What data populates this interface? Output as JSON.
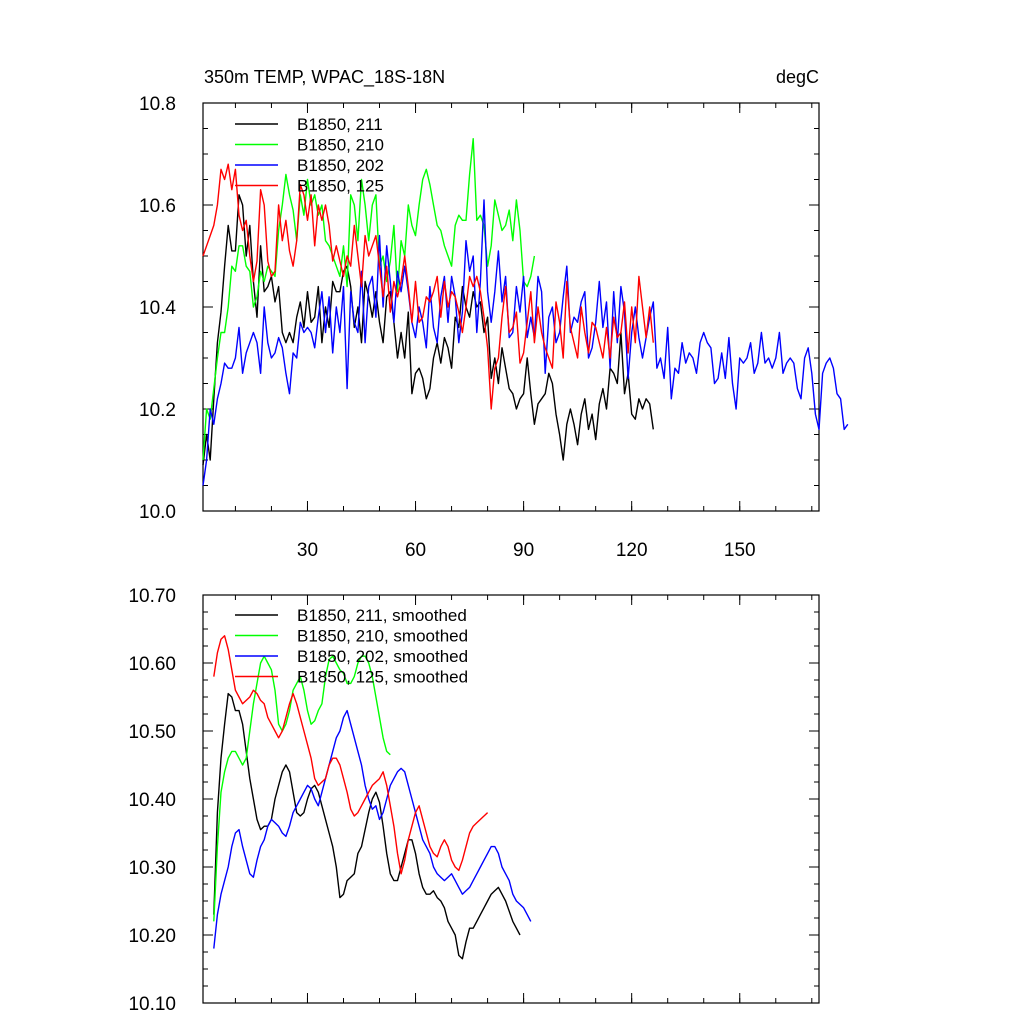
{
  "chart_data": [
    {
      "type": "line",
      "title": "350m TEMP, WPAC_18S-18N",
      "units": "degC",
      "xlim": [
        1,
        172
      ],
      "ylim": [
        10.0,
        10.8
      ],
      "xticks": [
        30,
        60,
        90,
        120,
        150
      ],
      "xtick_labels": [
        "30",
        "60",
        "90",
        "120",
        "150"
      ],
      "yticks": [
        10.0,
        10.2,
        10.4,
        10.6,
        10.8
      ],
      "ytick_labels": [
        "10.0",
        "10.2",
        "10.4",
        "10.6",
        "10.8"
      ],
      "legend_position": "top-left",
      "series": [
        {
          "name": "B1850, 211",
          "color": "#000000",
          "x_start": 1,
          "values": [
            10.09,
            10.15,
            10.1,
            10.22,
            10.33,
            10.39,
            10.48,
            10.56,
            10.51,
            10.51,
            10.62,
            10.6,
            10.5,
            10.56,
            10.45,
            10.38,
            10.52,
            10.43,
            10.44,
            10.46,
            10.41,
            10.44,
            10.35,
            10.33,
            10.35,
            10.33,
            10.38,
            10.41,
            10.36,
            10.43,
            10.37,
            10.38,
            10.44,
            10.33,
            10.4,
            10.36,
            10.45,
            10.43,
            10.43,
            10.47,
            10.48,
            10.44,
            10.36,
            10.4,
            10.33,
            10.45,
            10.42,
            10.38,
            10.43,
            10.37,
            10.33,
            10.42,
            10.43,
            10.37,
            10.3,
            10.35,
            10.3,
            10.39,
            10.23,
            10.27,
            10.28,
            10.26,
            10.22,
            10.24,
            10.3,
            10.33,
            10.29,
            10.34,
            10.32,
            10.28,
            10.38,
            10.36,
            10.44,
            10.4,
            10.38,
            10.43,
            10.4,
            10.41,
            10.35,
            10.38,
            10.26,
            10.3,
            10.25,
            10.32,
            10.28,
            10.24,
            10.23,
            10.2,
            10.22,
            10.23,
            10.3,
            10.23,
            10.17,
            10.21,
            10.22,
            10.23,
            10.27,
            10.25,
            10.19,
            10.15,
            10.1,
            10.17,
            10.2,
            10.17,
            10.13,
            10.19,
            10.22,
            10.16,
            10.19,
            10.14,
            10.21,
            10.24,
            10.2,
            10.28,
            10.27,
            10.25,
            10.35,
            10.23,
            10.27,
            10.19,
            10.18,
            10.22,
            10.2,
            10.22,
            10.21,
            10.16
          ]
        },
        {
          "name": "B1850, 210",
          "color": "#00ff00",
          "x_start": 1,
          "values": [
            10.1,
            10.2,
            10.18,
            10.24,
            10.3,
            10.35,
            10.35,
            10.4,
            10.48,
            10.47,
            10.52,
            10.52,
            10.48,
            10.47,
            10.4,
            10.42,
            10.47,
            10.45,
            10.48,
            10.47,
            10.46,
            10.55,
            10.6,
            10.66,
            10.62,
            10.59,
            10.53,
            10.62,
            10.58,
            10.65,
            10.6,
            10.62,
            10.58,
            10.6,
            10.53,
            10.52,
            10.5,
            10.48,
            10.46,
            10.52,
            10.44,
            10.62,
            10.6,
            10.53,
            10.65,
            10.6,
            10.53,
            10.6,
            10.62,
            10.48,
            10.5,
            10.45,
            10.49,
            10.56,
            10.43,
            10.53,
            10.5,
            10.6,
            10.56,
            10.54,
            10.6,
            10.65,
            10.67,
            10.64,
            10.6,
            10.56,
            10.55,
            10.52,
            10.5,
            10.48,
            10.56,
            10.58,
            10.57,
            10.57,
            10.66,
            10.73,
            10.57,
            10.58,
            10.56,
            10.48,
            10.52,
            10.61,
            10.58,
            10.55,
            10.56,
            10.59,
            10.53,
            10.61,
            10.55,
            10.45,
            10.44,
            10.46,
            10.5
          ]
        },
        {
          "name": "B1850, 202",
          "color": "#0000ff",
          "x_start": 1,
          "values": [
            10.05,
            10.1,
            10.2,
            10.17,
            10.22,
            10.25,
            10.29,
            10.28,
            10.28,
            10.3,
            10.36,
            10.27,
            10.31,
            10.33,
            10.35,
            10.33,
            10.27,
            10.4,
            10.33,
            10.3,
            10.31,
            10.34,
            10.32,
            10.27,
            10.23,
            10.31,
            10.3,
            10.37,
            10.35,
            10.36,
            10.35,
            10.32,
            10.38,
            10.43,
            10.35,
            10.42,
            10.31,
            10.4,
            10.35,
            10.44,
            10.24,
            10.43,
            10.37,
            10.35,
            10.47,
            10.33,
            10.44,
            10.46,
            10.38,
            10.54,
            10.4,
            10.52,
            10.45,
            10.37,
            10.47,
            10.43,
            10.48,
            10.43,
            10.37,
            10.34,
            10.4,
            10.37,
            10.32,
            10.44,
            10.36,
            10.33,
            10.42,
            10.46,
            10.37,
            10.46,
            10.42,
            10.33,
            10.39,
            10.53,
            10.47,
            10.5,
            10.35,
            10.45,
            10.61,
            10.43,
            10.37,
            10.43,
            10.51,
            10.41,
            10.46,
            10.34,
            10.35,
            10.44,
            10.39,
            10.46,
            10.34,
            10.38,
            10.34,
            10.46,
            10.43,
            10.27,
            10.38,
            10.4,
            10.33,
            10.35,
            10.42,
            10.48,
            10.35,
            10.38,
            10.37,
            10.41,
            10.43,
            10.3,
            10.32,
            10.37,
            10.45,
            10.36,
            10.41,
            10.28,
            10.43,
            10.33,
            10.44,
            10.39,
            10.26,
            10.35,
            10.4,
            10.34,
            10.3,
            10.34,
            10.38,
            10.41,
            10.28,
            10.3,
            10.26,
            10.36,
            10.22,
            10.28,
            10.27,
            10.33,
            10.29,
            10.31,
            10.3,
            10.27,
            10.33,
            10.35,
            10.33,
            10.32,
            10.25,
            10.26,
            10.31,
            10.26,
            10.34,
            10.25,
            10.2,
            10.3,
            10.29,
            10.3,
            10.33,
            10.27,
            10.29,
            10.35,
            10.29,
            10.3,
            10.28,
            10.3,
            10.35,
            10.27,
            10.29,
            10.3,
            10.29,
            10.24,
            10.22,
            10.3,
            10.32,
            10.27,
            10.19,
            10.16,
            10.27,
            10.29,
            10.3,
            10.28,
            10.23,
            10.22,
            10.16,
            10.17
          ]
        },
        {
          "name": "B1850, 125",
          "color": "#ff0000",
          "x_start": 1,
          "values": [
            10.5,
            10.52,
            10.54,
            10.56,
            10.6,
            10.67,
            10.65,
            10.68,
            10.63,
            10.67,
            10.58,
            10.55,
            10.57,
            10.5,
            10.45,
            10.49,
            10.63,
            10.6,
            10.49,
            10.46,
            10.47,
            10.6,
            10.53,
            10.57,
            10.51,
            10.48,
            10.53,
            10.64,
            10.62,
            10.57,
            10.62,
            10.52,
            10.6,
            10.57,
            10.6,
            10.56,
            10.49,
            10.52,
            10.49,
            10.46,
            10.5,
            10.48,
            10.56,
            10.5,
            10.44,
            10.54,
            10.5,
            10.52,
            10.54,
            10.48,
            10.42,
            10.48,
            10.39,
            10.45,
            10.42,
            10.45,
            10.5,
            10.44,
            10.37,
            10.45,
            10.37,
            10.38,
            10.42,
            10.41,
            10.43,
            10.46,
            10.38,
            10.45,
            10.4,
            10.43,
            10.42,
            10.39,
            10.35,
            10.4,
            10.46,
            10.44,
            10.46,
            10.43,
            10.38,
            10.32,
            10.2,
            10.28,
            10.3,
            10.38,
            10.44,
            10.35,
            10.36,
            10.39,
            10.29,
            10.31,
            10.37,
            10.43,
            10.33,
            10.4,
            10.35,
            10.32,
            10.3,
            10.28,
            10.41,
            10.37,
            10.3,
            10.45,
            10.36,
            10.33,
            10.3,
            10.4,
            10.35,
            10.31,
            10.37,
            10.36,
            10.33,
            10.3,
            10.36,
            10.3,
            10.38,
            10.34,
            10.35,
            10.41,
            10.31,
            10.4,
            10.33,
            10.46,
            10.4,
            10.34,
            10.4,
            10.33
          ]
        }
      ]
    },
    {
      "type": "line",
      "title": "",
      "xlim": [
        1,
        172
      ],
      "ylim": [
        10.1,
        10.7
      ],
      "xticks": [
        30,
        60,
        90,
        120,
        150
      ],
      "xtick_labels": [
        "",
        "",
        "",
        "",
        ""
      ],
      "yticks": [
        10.1,
        10.2,
        10.3,
        10.4,
        10.5,
        10.6,
        10.7
      ],
      "ytick_labels": [
        "10.10",
        "10.20",
        "10.30",
        "10.40",
        "10.50",
        "10.60",
        "10.70"
      ],
      "legend_position": "top-left",
      "series": [
        {
          "name": "B1850, 211, smoothed",
          "color": "#000000",
          "x_start": 4,
          "values": [
            10.23,
            10.38,
            10.46,
            10.51,
            10.555,
            10.55,
            10.53,
            10.53,
            10.51,
            10.47,
            10.43,
            10.4,
            10.37,
            10.355,
            10.36,
            10.36,
            10.37,
            10.4,
            10.42,
            10.44,
            10.45,
            10.44,
            10.41,
            10.38,
            10.375,
            10.38,
            10.4,
            10.415,
            10.42,
            10.41,
            10.39,
            10.37,
            10.35,
            10.33,
            10.3,
            10.255,
            10.26,
            10.28,
            10.285,
            10.29,
            10.32,
            10.33,
            10.355,
            10.38,
            10.4,
            10.41,
            10.395,
            10.36,
            10.32,
            10.29,
            10.28,
            10.28,
            10.3,
            10.32,
            10.34,
            10.34,
            10.32,
            10.29,
            10.27,
            10.26,
            10.26,
            10.265,
            10.255,
            10.25,
            10.24,
            10.22,
            10.21,
            10.2,
            10.17,
            10.165,
            10.19,
            10.21,
            10.21,
            10.22,
            10.23,
            10.24,
            10.25,
            10.26,
            10.265,
            10.27,
            10.26,
            10.25,
            10.235,
            10.22,
            10.21,
            10.2
          ]
        },
        {
          "name": "B1850, 210, smoothed",
          "color": "#00ff00",
          "x_start": 4,
          "values": [
            10.22,
            10.33,
            10.41,
            10.44,
            10.46,
            10.47,
            10.47,
            10.46,
            10.45,
            10.46,
            10.5,
            10.54,
            10.57,
            10.6,
            10.61,
            10.6,
            10.59,
            10.56,
            10.51,
            10.5,
            10.51,
            10.53,
            10.56,
            10.57,
            10.58,
            10.56,
            10.53,
            10.51,
            10.515,
            10.53,
            10.54,
            10.58,
            10.605,
            10.61,
            10.6,
            10.59,
            10.585,
            10.57,
            10.57,
            10.58,
            10.6,
            10.61,
            10.61,
            10.6,
            10.58,
            10.55,
            10.52,
            10.49,
            10.47,
            10.465
          ]
        },
        {
          "name": "B1850, 202, smoothed",
          "color": "#0000ff",
          "x_start": 4,
          "values": [
            10.18,
            10.23,
            10.26,
            10.28,
            10.3,
            10.33,
            10.35,
            10.355,
            10.33,
            10.31,
            10.29,
            10.285,
            10.31,
            10.33,
            10.34,
            10.36,
            10.37,
            10.365,
            10.36,
            10.35,
            10.345,
            10.36,
            10.38,
            10.39,
            10.4,
            10.41,
            10.42,
            10.415,
            10.4,
            10.39,
            10.41,
            10.43,
            10.45,
            10.47,
            10.49,
            10.5,
            10.52,
            10.53,
            10.51,
            10.49,
            10.47,
            10.45,
            10.42,
            10.4,
            10.385,
            10.39,
            10.37,
            10.38,
            10.4,
            10.42,
            10.43,
            10.44,
            10.445,
            10.44,
            10.42,
            10.4,
            10.38,
            10.36,
            10.34,
            10.33,
            10.32,
            10.3,
            10.29,
            10.285,
            10.28,
            10.285,
            10.29,
            10.28,
            10.27,
            10.26,
            10.265,
            10.27,
            10.28,
            10.29,
            10.3,
            10.31,
            10.32,
            10.33,
            10.33,
            10.32,
            10.3,
            10.29,
            10.28,
            10.26,
            10.25,
            10.245,
            10.24,
            10.23,
            10.22
          ]
        },
        {
          "name": "B1850, 125, smoothed",
          "color": "#ff0000",
          "x_start": 4,
          "values": [
            10.58,
            10.615,
            10.635,
            10.64,
            10.62,
            10.59,
            10.56,
            10.55,
            10.54,
            10.545,
            10.55,
            10.56,
            10.555,
            10.545,
            10.54,
            10.52,
            10.51,
            10.5,
            10.49,
            10.5,
            10.52,
            10.54,
            10.555,
            10.54,
            10.52,
            10.5,
            10.48,
            10.46,
            10.43,
            10.42,
            10.425,
            10.43,
            10.45,
            10.46,
            10.46,
            10.45,
            10.43,
            10.41,
            10.385,
            10.375,
            10.38,
            10.39,
            10.4,
            10.41,
            10.42,
            10.425,
            10.43,
            10.44,
            10.42,
            10.39,
            10.36,
            10.32,
            10.29,
            10.31,
            10.34,
            10.36,
            10.38,
            10.39,
            10.37,
            10.35,
            10.33,
            10.32,
            10.315,
            10.33,
            10.34,
            10.33,
            10.31,
            10.3,
            10.295,
            10.31,
            10.33,
            10.35,
            10.36,
            10.365,
            10.37,
            10.375,
            10.38
          ]
        }
      ]
    }
  ]
}
